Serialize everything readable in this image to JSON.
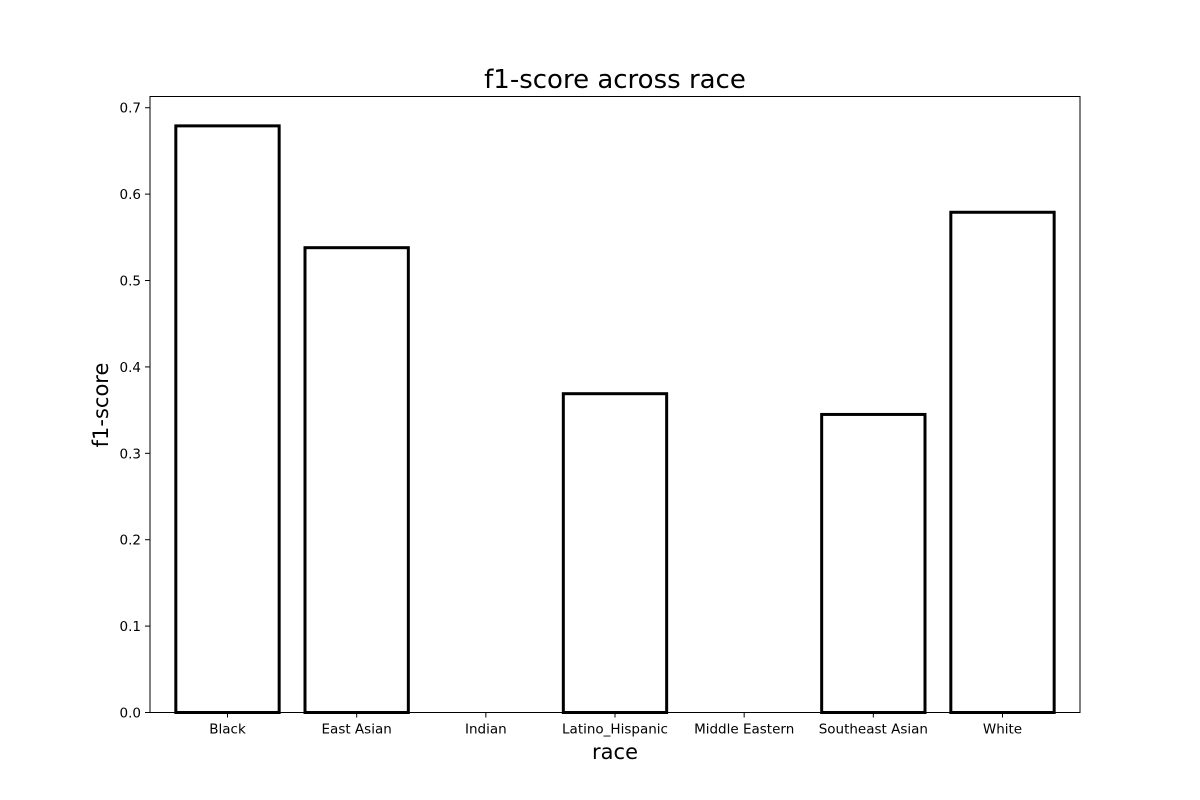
{
  "chart_data": {
    "type": "bar",
    "title": "f1-score across race",
    "xlabel": "race",
    "ylabel": "f1-score",
    "categories": [
      "Black",
      "East Asian",
      "Indian",
      "Latino_Hispanic",
      "Middle Eastern",
      "Southeast Asian",
      "White"
    ],
    "values": [
      0.679,
      0.538,
      0.0,
      0.369,
      0.0,
      0.345,
      0.579
    ],
    "ylim": [
      0,
      0.713
    ],
    "yticks": [
      0.0,
      0.1,
      0.2,
      0.3,
      0.4,
      0.5,
      0.6,
      0.7
    ],
    "ytick_labels": [
      "0.0",
      "0.1",
      "0.2",
      "0.3",
      "0.4",
      "0.5",
      "0.6",
      "0.7"
    ],
    "grid": false,
    "bar_fill": "#ffffff",
    "bar_edge": "#000000"
  }
}
